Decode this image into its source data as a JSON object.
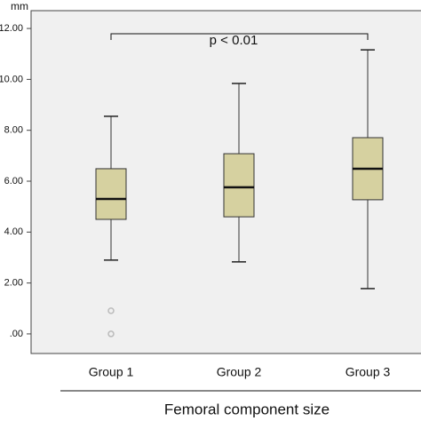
{
  "chart_data": {
    "type": "box",
    "y_label": "mm",
    "x_label": "Femoral component size",
    "annotation": "p < 0.01",
    "categories": [
      "Group 1",
      "Group 2",
      "Group 3"
    ],
    "color": "#d6d1a0",
    "boxes": [
      {
        "min": 2.9,
        "q1": 4.5,
        "median": 5.3,
        "q3": 6.49,
        "max": 8.55,
        "outliers": [
          0.91,
          0.0
        ]
      },
      {
        "min": 2.83,
        "q1": 4.6,
        "median": 5.76,
        "q3": 7.08,
        "max": 9.84,
        "outliers": []
      },
      {
        "min": 1.78,
        "q1": 5.27,
        "median": 6.49,
        "q3": 7.71,
        "max": 11.16,
        "outliers": []
      }
    ],
    "ylim": [
      -0.77,
      12.7
    ],
    "yticks": [
      {
        "value": 0,
        "label": ".00"
      },
      {
        "value": 2,
        "label": "2.00"
      },
      {
        "value": 4,
        "label": "4.00"
      },
      {
        "value": 6,
        "label": "6.00"
      },
      {
        "value": 8,
        "label": "8.00"
      },
      {
        "value": 10,
        "label": "10.00"
      },
      {
        "value": 12,
        "label": "12.00"
      }
    ]
  }
}
